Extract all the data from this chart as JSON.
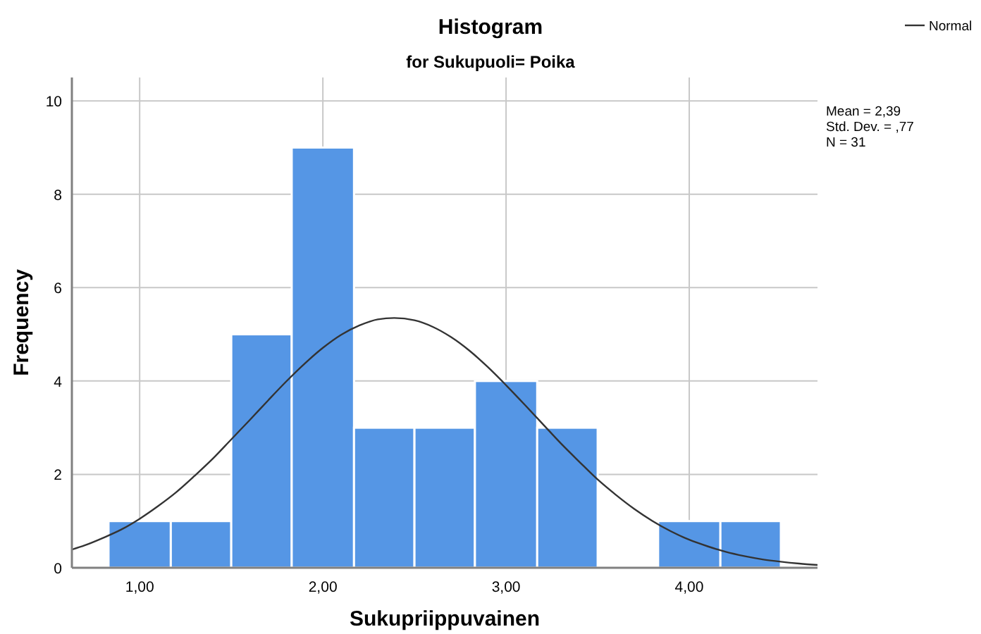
{
  "chart_data": {
    "type": "histogram",
    "title": "Histogram",
    "subtitle": "for Sukupuoli= Poika",
    "xlabel": "Sukupriippuvainen",
    "ylabel": "Frequency",
    "bins": [
      0.83,
      1.17,
      1.5,
      1.83,
      2.17,
      2.5,
      2.83,
      3.17,
      3.5,
      3.83,
      4.17,
      4.5
    ],
    "series": [
      {
        "color": "#5596e5",
        "values": [
          1,
          1,
          5,
          9,
          3,
          3,
          4,
          3,
          0,
          1,
          1
        ]
      },
      {
        "type": "line",
        "name": "Normal",
        "color": "#333333",
        "x": [
          0.63,
          0.7,
          0.8,
          0.9,
          1.0,
          1.1,
          1.2,
          1.3,
          1.4,
          1.5,
          1.6,
          1.7,
          1.8,
          1.9,
          2.0,
          2.1,
          2.2,
          2.3,
          2.39,
          2.5,
          2.6,
          2.7,
          2.8,
          2.9,
          3.0,
          3.1,
          3.2,
          3.3,
          3.4,
          3.5,
          3.6,
          3.7,
          3.8,
          3.9,
          4.0,
          4.1,
          4.2,
          4.3,
          4.4,
          4.5,
          4.6,
          4.7
        ],
        "values": [
          0.39,
          0.48,
          0.64,
          0.82,
          1.05,
          1.32,
          1.62,
          1.97,
          2.34,
          2.75,
          3.16,
          3.58,
          3.99,
          4.37,
          4.71,
          4.99,
          5.19,
          5.32,
          5.35,
          5.3,
          5.16,
          4.94,
          4.65,
          4.3,
          3.91,
          3.5,
          3.08,
          2.66,
          2.27,
          1.89,
          1.56,
          1.26,
          1.0,
          0.78,
          0.6,
          0.46,
          0.34,
          0.25,
          0.18,
          0.13,
          0.09,
          0.06
        ]
      }
    ],
    "xlim": [
      0.63,
      4.7
    ],
    "ylim": [
      0,
      10.5
    ],
    "xticks": [
      {
        "value": 1,
        "label": "1,00"
      },
      {
        "value": 2,
        "label": "2,00"
      },
      {
        "value": 3,
        "label": "3,00"
      },
      {
        "value": 4,
        "label": "4,00"
      }
    ],
    "yticks": [
      0,
      2,
      4,
      6,
      8,
      10
    ],
    "grid": true,
    "legend": "top right",
    "annotations": [
      "Mean = 2,39",
      "Std. Dev. = ,77",
      "N = 31"
    ]
  }
}
